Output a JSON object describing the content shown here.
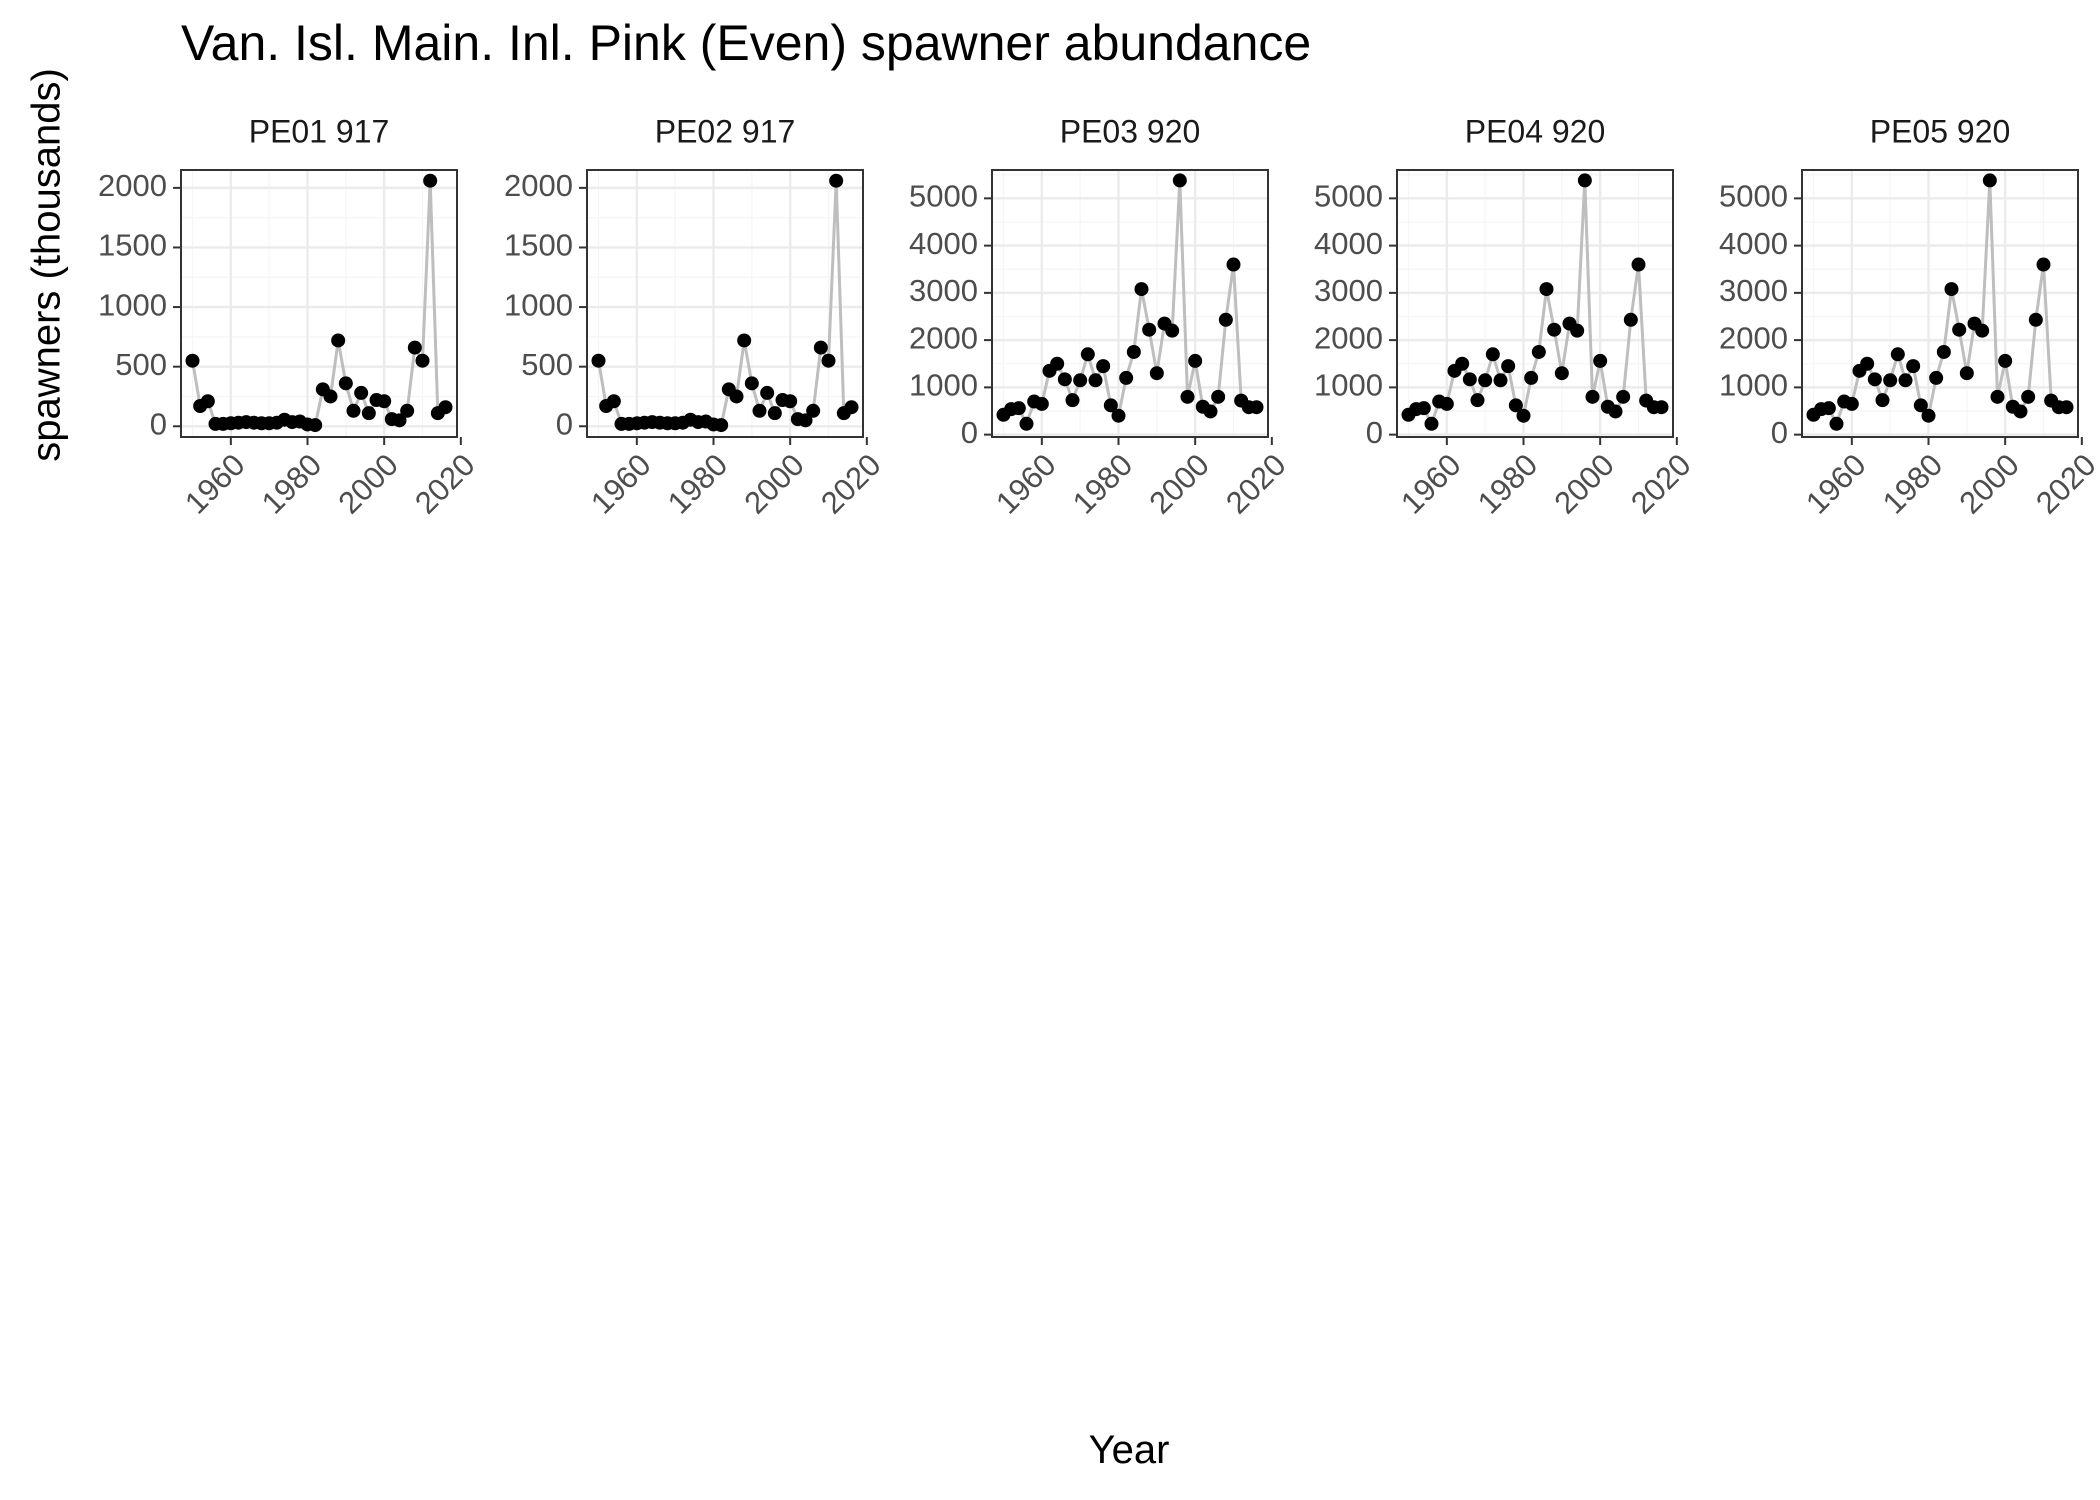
{
  "title": "Van. Isl. Main. Inl. Pink (Even) spawner abundance",
  "ylabel": "spawners (thousands)",
  "xlabel": "Year",
  "colors": {
    "line": "#bebebe",
    "point": "#000000",
    "grid_major": "#ebebeb",
    "grid_minor": "#f5f5f5",
    "panel_border": "#333333",
    "tick_text": "#4d4d4d"
  },
  "chart_data": [
    {
      "type": "line",
      "facet": "PE01 917",
      "xlim": [
        1947,
        2019
      ],
      "ylim": [
        -90,
        2150
      ],
      "xticks": [
        1960,
        1980,
        2000,
        2020
      ],
      "yticks": [
        0,
        500,
        1000,
        1500,
        2000
      ],
      "x": [
        1950,
        1952,
        1954,
        1956,
        1958,
        1960,
        1962,
        1964,
        1966,
        1968,
        1970,
        1972,
        1974,
        1976,
        1978,
        1980,
        1982,
        1984,
        1986,
        1988,
        1990,
        1992,
        1994,
        1996,
        1998,
        2000,
        2002,
        2004,
        2006,
        2008,
        2010,
        2012,
        2014,
        2016
      ],
      "y": [
        550,
        170,
        210,
        20,
        20,
        25,
        30,
        35,
        30,
        25,
        25,
        30,
        55,
        35,
        40,
        15,
        10,
        310,
        250,
        720,
        360,
        130,
        280,
        110,
        220,
        210,
        60,
        50,
        130,
        660,
        550,
        2060,
        110,
        160
      ]
    },
    {
      "type": "line",
      "facet": "PE02 917",
      "xlim": [
        1947,
        2019
      ],
      "ylim": [
        -90,
        2150
      ],
      "xticks": [
        1960,
        1980,
        2000,
        2020
      ],
      "yticks": [
        0,
        500,
        1000,
        1500,
        2000
      ],
      "x": [
        1950,
        1952,
        1954,
        1956,
        1958,
        1960,
        1962,
        1964,
        1966,
        1968,
        1970,
        1972,
        1974,
        1976,
        1978,
        1980,
        1982,
        1984,
        1986,
        1988,
        1990,
        1992,
        1994,
        1996,
        1998,
        2000,
        2002,
        2004,
        2006,
        2008,
        2010,
        2012,
        2014,
        2016
      ],
      "y": [
        550,
        170,
        210,
        20,
        20,
        25,
        30,
        35,
        30,
        25,
        25,
        30,
        55,
        35,
        40,
        15,
        10,
        310,
        250,
        720,
        360,
        130,
        280,
        110,
        220,
        210,
        60,
        50,
        130,
        660,
        550,
        2060,
        110,
        160
      ]
    },
    {
      "type": "line",
      "facet": "PE03 920",
      "xlim": [
        1947,
        2019
      ],
      "ylim": [
        -50,
        5600
      ],
      "xticks": [
        1960,
        1980,
        2000,
        2020
      ],
      "yticks": [
        0,
        1000,
        2000,
        3000,
        4000,
        5000
      ],
      "x": [
        1950,
        1952,
        1954,
        1956,
        1958,
        1960,
        1962,
        1964,
        1966,
        1968,
        1970,
        1972,
        1974,
        1976,
        1978,
        1980,
        1982,
        1984,
        1986,
        1988,
        1990,
        1992,
        1994,
        1996,
        1998,
        2000,
        2002,
        2004,
        2006,
        2008,
        2010,
        2012,
        2014,
        2016
      ],
      "y": [
        420,
        540,
        560,
        230,
        700,
        650,
        1350,
        1500,
        1170,
        730,
        1150,
        1700,
        1150,
        1450,
        620,
        400,
        1200,
        1750,
        3080,
        2220,
        1300,
        2350,
        2200,
        5380,
        800,
        1560,
        590,
        490,
        800,
        2430,
        3600,
        720,
        580,
        580
      ]
    },
    {
      "type": "line",
      "facet": "PE04 920",
      "xlim": [
        1947,
        2019
      ],
      "ylim": [
        -50,
        5600
      ],
      "xticks": [
        1960,
        1980,
        2000,
        2020
      ],
      "yticks": [
        0,
        1000,
        2000,
        3000,
        4000,
        5000
      ],
      "x": [
        1950,
        1952,
        1954,
        1956,
        1958,
        1960,
        1962,
        1964,
        1966,
        1968,
        1970,
        1972,
        1974,
        1976,
        1978,
        1980,
        1982,
        1984,
        1986,
        1988,
        1990,
        1992,
        1994,
        1996,
        1998,
        2000,
        2002,
        2004,
        2006,
        2008,
        2010,
        2012,
        2014,
        2016
      ],
      "y": [
        420,
        540,
        560,
        230,
        700,
        650,
        1350,
        1500,
        1170,
        730,
        1150,
        1700,
        1150,
        1450,
        620,
        400,
        1200,
        1750,
        3080,
        2220,
        1300,
        2350,
        2200,
        5380,
        800,
        1560,
        590,
        490,
        800,
        2430,
        3600,
        720,
        580,
        580
      ]
    },
    {
      "type": "line",
      "facet": "PE05 920",
      "xlim": [
        1947,
        2019
      ],
      "ylim": [
        -50,
        5600
      ],
      "xticks": [
        1960,
        1980,
        2000,
        2020
      ],
      "yticks": [
        0,
        1000,
        2000,
        3000,
        4000,
        5000
      ],
      "x": [
        1950,
        1952,
        1954,
        1956,
        1958,
        1960,
        1962,
        1964,
        1966,
        1968,
        1970,
        1972,
        1974,
        1976,
        1978,
        1980,
        1982,
        1984,
        1986,
        1988,
        1990,
        1992,
        1994,
        1996,
        1998,
        2000,
        2002,
        2004,
        2006,
        2008,
        2010,
        2012,
        2014,
        2016
      ],
      "y": [
        420,
        540,
        560,
        230,
        700,
        650,
        1350,
        1500,
        1170,
        730,
        1150,
        1700,
        1150,
        1450,
        620,
        400,
        1200,
        1750,
        3080,
        2220,
        1300,
        2350,
        2200,
        5380,
        800,
        1560,
        590,
        490,
        800,
        2430,
        3600,
        720,
        580,
        580
      ]
    }
  ]
}
